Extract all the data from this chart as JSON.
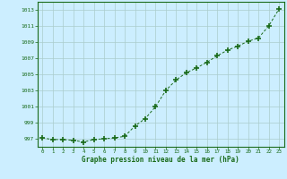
{
  "x": [
    0,
    1,
    2,
    3,
    4,
    5,
    6,
    7,
    8,
    9,
    10,
    11,
    12,
    13,
    14,
    15,
    16,
    17,
    18,
    19,
    20,
    21,
    22,
    23
  ],
  "y": [
    997.1,
    996.9,
    996.9,
    996.8,
    996.6,
    996.9,
    997.0,
    997.1,
    997.3,
    998.6,
    999.5,
    1001.0,
    1003.0,
    1004.3,
    1005.2,
    1005.8,
    1006.5,
    1007.3,
    1008.0,
    1008.5,
    1009.1,
    1009.5,
    1011.0,
    1013.1
  ],
  "xlim": [
    -0.5,
    23.5
  ],
  "ylim": [
    996.0,
    1014.0
  ],
  "yticks": [
    997,
    999,
    1001,
    1003,
    1005,
    1007,
    1009,
    1011,
    1013
  ],
  "xticks": [
    0,
    1,
    2,
    3,
    4,
    5,
    6,
    7,
    8,
    9,
    10,
    11,
    12,
    13,
    14,
    15,
    16,
    17,
    18,
    19,
    20,
    21,
    22,
    23
  ],
  "xlabel": "Graphe pression niveau de la mer (hPa)",
  "line_color": "#1a6b1a",
  "marker_color": "#1a6b1a",
  "bg_color": "#cceeff",
  "grid_color": "#aacccc",
  "font_family": "monospace"
}
